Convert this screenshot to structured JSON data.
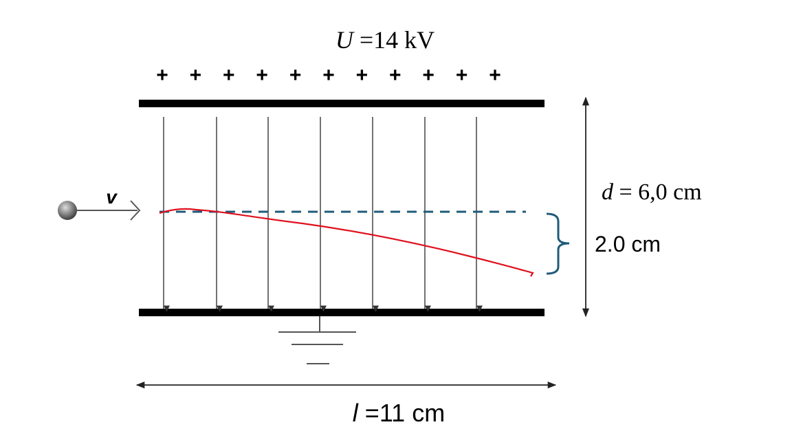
{
  "voltage_label": {
    "var": "U",
    "text": " =14 kV"
  },
  "plus_sign": "+",
  "plus_count": 11,
  "velocity_label": "v",
  "distance_label": {
    "var": "d",
    "text": " = 6,0 cm"
  },
  "deflection_label": "2.0 cm",
  "length_label": {
    "var": "l",
    "text": " =11 cm"
  },
  "colors": {
    "trajectory": "#e0101e",
    "dashed": "#1f5b7a",
    "brace": "#1f5b7a",
    "plate": "#000000",
    "field": "#333333"
  }
}
